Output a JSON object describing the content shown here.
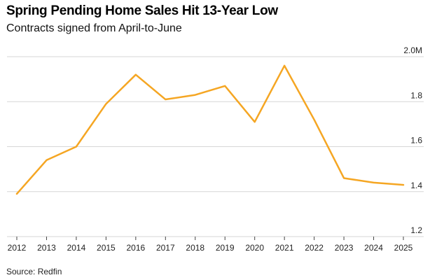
{
  "title": "Spring Pending Home Sales Hit 13-Year Low",
  "subtitle": "Contracts signed from April-to-June",
  "source": "Source: Redfin",
  "colors": {
    "line": "#f5a623",
    "grid": "#d6d6d6"
  },
  "chart_data": {
    "type": "line",
    "title": "Spring Pending Home Sales Hit 13-Year Low",
    "subtitle": "Contracts signed from April-to-June",
    "xlabel": "",
    "ylabel": "",
    "categories": [
      "2012",
      "2013",
      "2014",
      "2015",
      "2016",
      "2017",
      "2018",
      "2019",
      "2020",
      "2021",
      "2022",
      "2023",
      "2024",
      "2025"
    ],
    "y_tick_labels": [
      "2.0M",
      "1.8",
      "1.6",
      "1.4",
      "1.2"
    ],
    "y_tick_values": [
      2.0,
      1.8,
      1.6,
      1.4,
      1.2
    ],
    "ylim": [
      1.2,
      2.0
    ],
    "grid": true,
    "legend": "none",
    "series": [
      {
        "values": [
          1.39,
          1.54,
          1.6,
          1.79,
          1.92,
          1.81,
          1.83,
          1.87,
          1.71,
          1.96,
          1.72,
          1.46,
          1.44,
          1.43
        ],
        "years": [
          "2012",
          "2013",
          "2014",
          "2015",
          "2016",
          "2017",
          "2018",
          "2019",
          "2020",
          "2021",
          "2022",
          "2023",
          "2024",
          "2025"
        ]
      }
    ]
  }
}
